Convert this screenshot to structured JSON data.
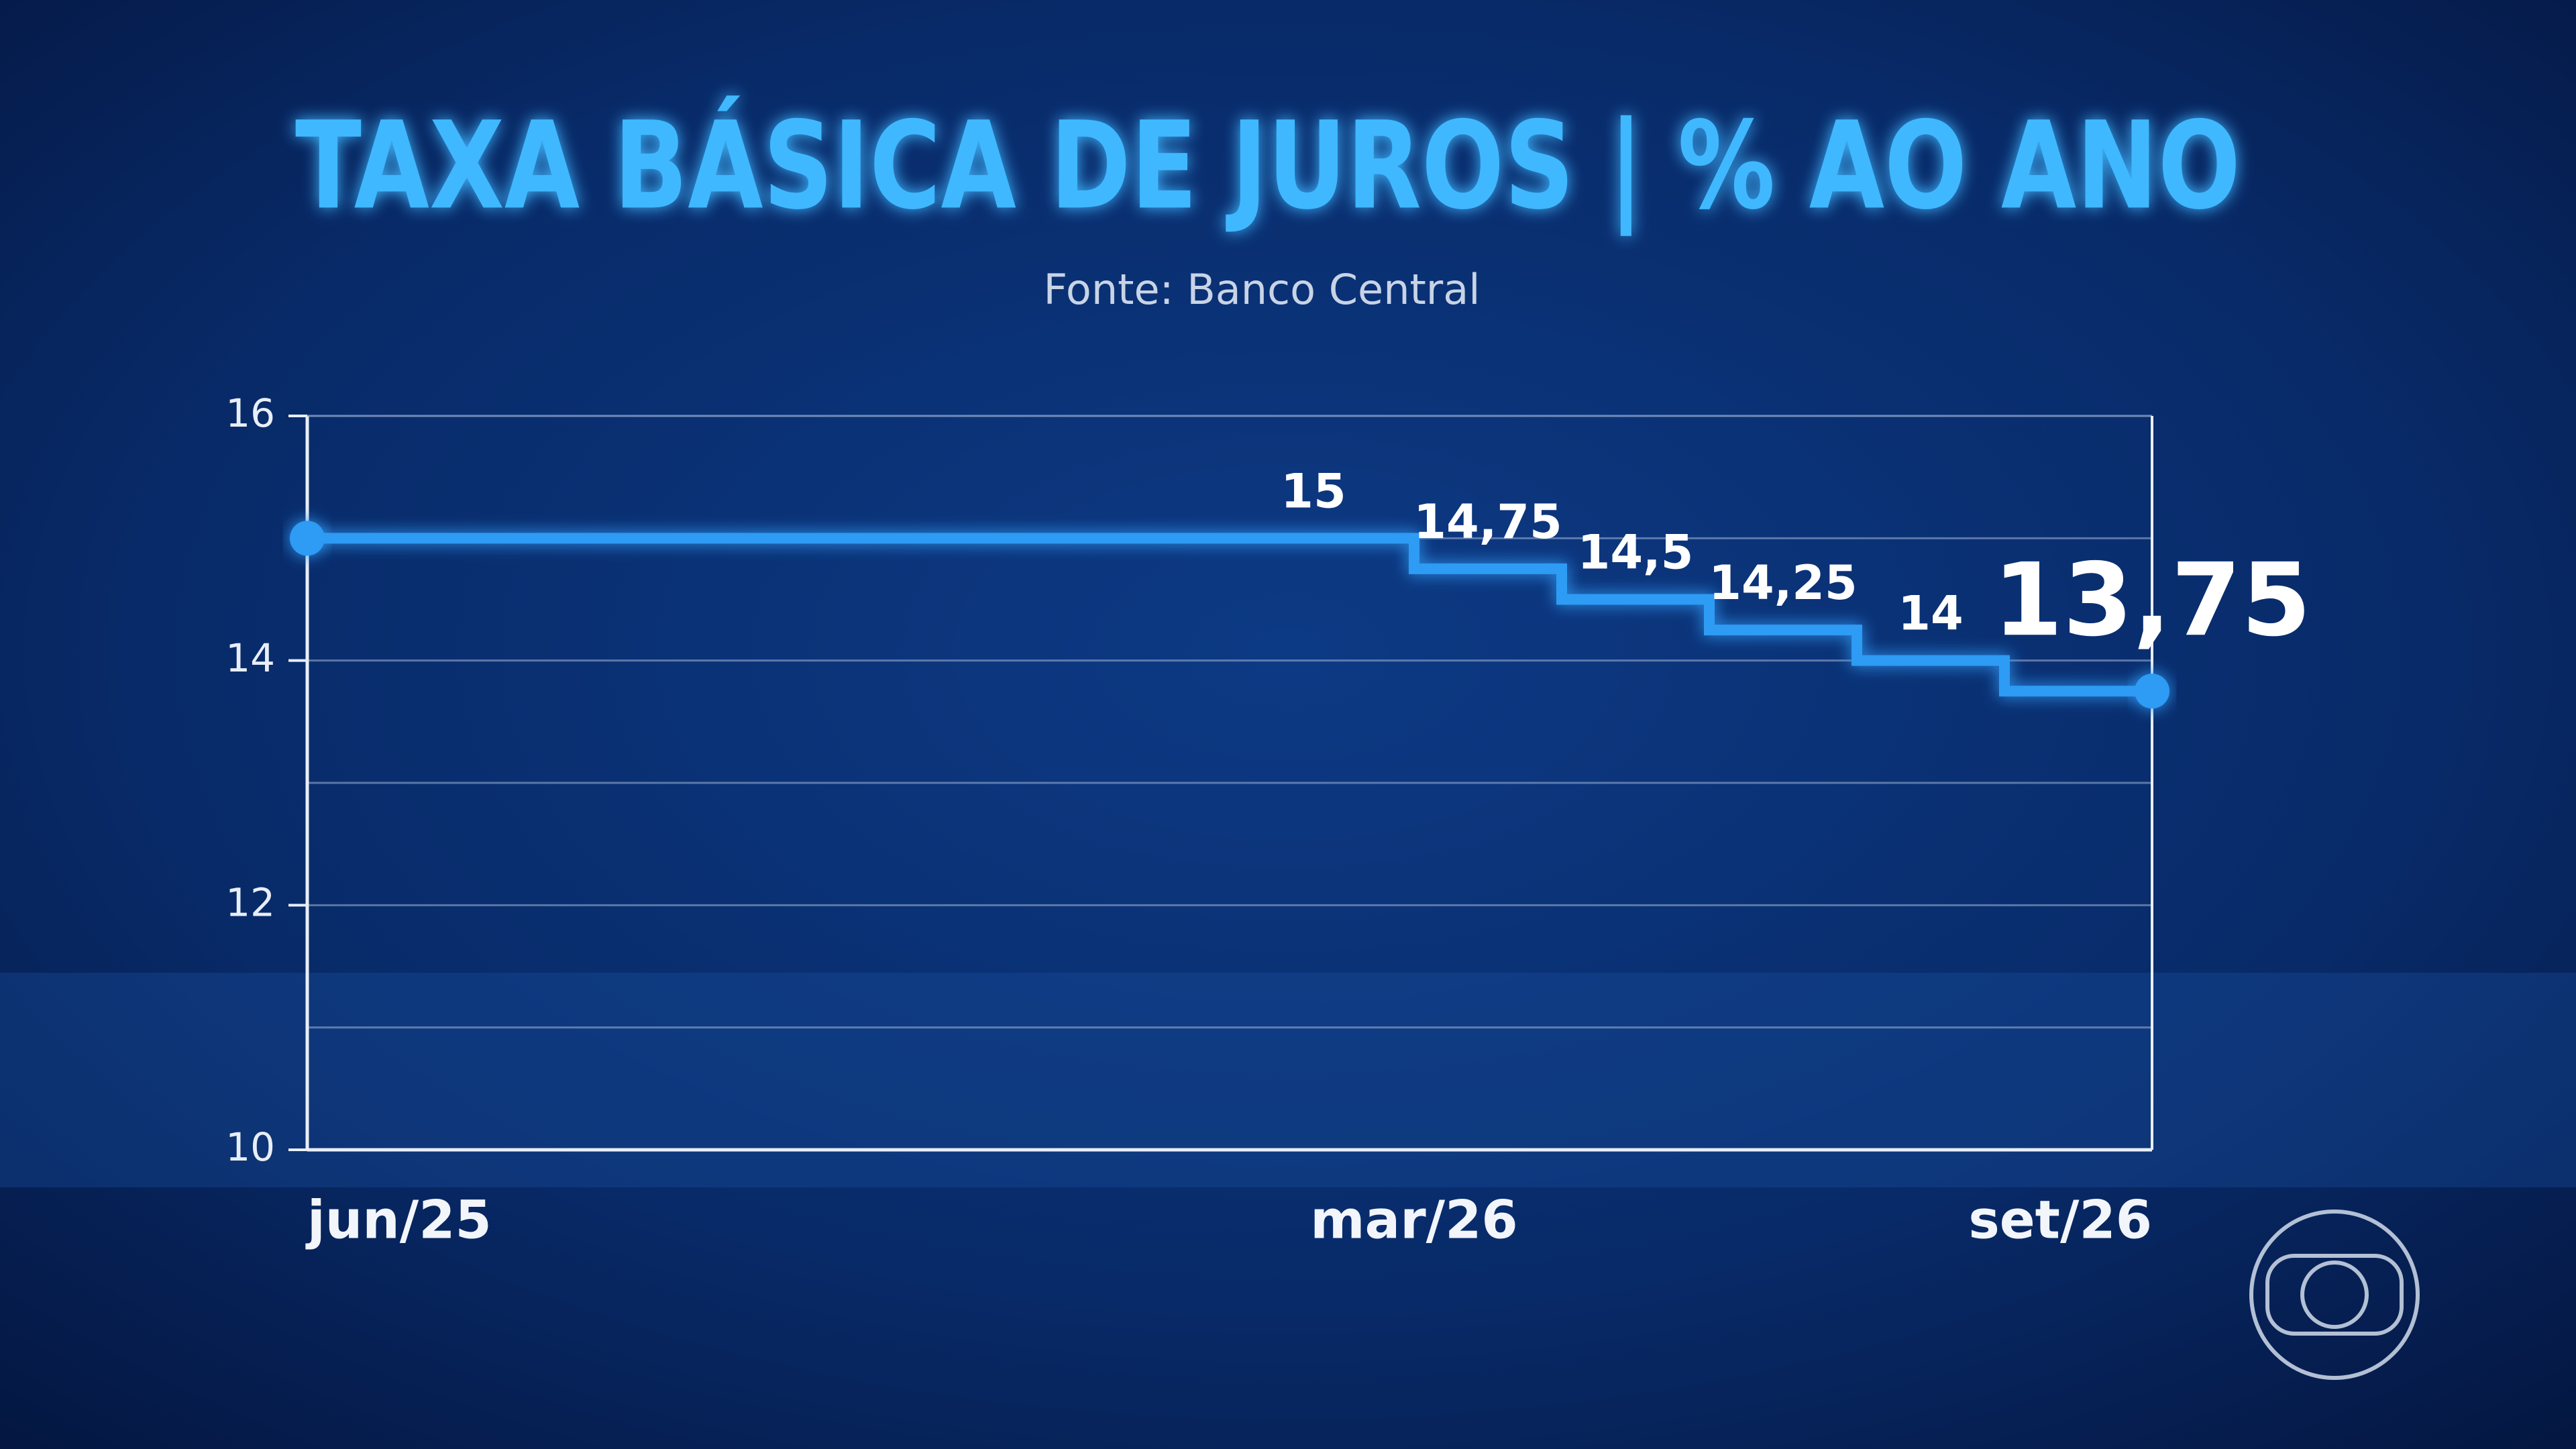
{
  "chart_data": {
    "type": "step-line",
    "title": "TAXA BÁSICA DE JUROS | % AO ANO",
    "subtitle": "Fonte: Banco Central",
    "x": [
      0,
      9,
      10.2,
      11.4,
      12.6,
      13.8
    ],
    "values": [
      15,
      14.75,
      14.5,
      14.25,
      14,
      13.75
    ],
    "value_labels": [
      "15",
      "14,75",
      "14,5",
      "14,25",
      "14",
      "13,75"
    ],
    "color": "#2f9bf5",
    "xlim": [
      0,
      15
    ],
    "xticks": [
      {
        "value": 0,
        "label": "jun/25"
      },
      {
        "value": 9,
        "label": "mar/26"
      },
      {
        "value": 15,
        "label": "set/26"
      }
    ],
    "ylim": [
      10,
      16
    ],
    "yticks": [
      10,
      12,
      14,
      16
    ],
    "minor_yticks": [
      11,
      13,
      15
    ],
    "grid": true
  }
}
